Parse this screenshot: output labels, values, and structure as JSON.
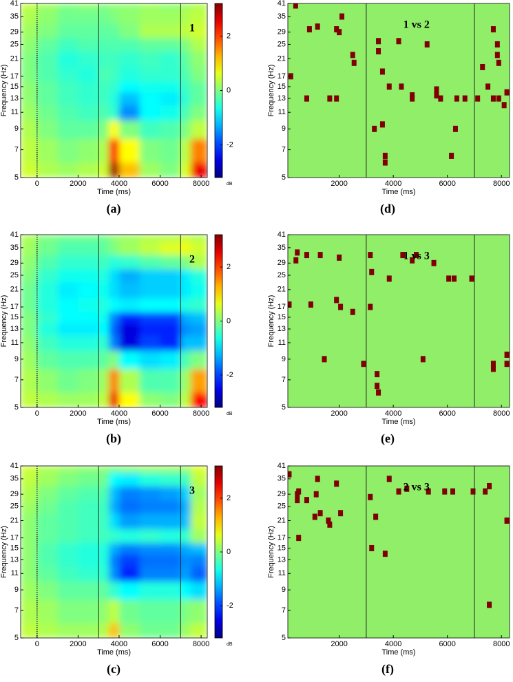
{
  "chart_data": [
    {
      "type": "heatmap",
      "label": "(a)",
      "annotation": "1",
      "xlabel": "Time (ms)",
      "ylabel": "Frequency (Hz)",
      "xlim": [
        -800,
        8300
      ],
      "xticks": [
        0,
        2000,
        4000,
        6000,
        8000
      ],
      "ylim": [
        5,
        41
      ],
      "yticks": [
        5,
        7,
        9,
        11,
        13,
        15,
        17,
        21,
        25,
        29,
        35,
        41
      ],
      "ylog": true,
      "xbins": [
        -800,
        0,
        1000,
        2000,
        3000,
        3500,
        4000,
        5000,
        6000,
        7000,
        7500,
        8300
      ],
      "ybins": [
        5,
        6,
        8,
        10,
        12,
        14,
        16,
        19,
        23,
        27,
        32,
        38,
        41
      ],
      "z": [
        [
          0.5,
          0.3,
          0.2,
          0.3,
          0.5,
          3.0,
          1.2,
          0.2,
          0.0,
          0.6,
          2.5
        ],
        [
          0.4,
          0.2,
          0,
          0.1,
          0.3,
          2.2,
          0.8,
          0.0,
          -0.1,
          0.4,
          1.6
        ],
        [
          0.3,
          0,
          -0.2,
          -0.2,
          0,
          0.8,
          0.0,
          -0.4,
          -0.3,
          0,
          0.4
        ],
        [
          0.2,
          -0.1,
          -0.3,
          -0.4,
          -0.3,
          -0.5,
          -1.5,
          -0.8,
          -0.7,
          -0.3,
          0.0
        ],
        [
          0.1,
          -0.2,
          -0.4,
          -0.5,
          -0.4,
          -0.6,
          -1.2,
          -0.8,
          -0.9,
          -0.5,
          -0.2
        ],
        [
          0.1,
          -0.2,
          -0.4,
          -0.5,
          -0.4,
          -0.5,
          -0.8,
          -0.7,
          -0.7,
          -0.4,
          -0.2
        ],
        [
          0.0,
          -0.3,
          -0.5,
          -0.6,
          -0.3,
          -0.4,
          -0.6,
          -0.5,
          -0.5,
          -0.3,
          0.0
        ],
        [
          0.0,
          -0.3,
          -0.6,
          -0.5,
          -0.4,
          -0.4,
          -0.5,
          -0.4,
          -0.5,
          -0.2,
          0.1
        ],
        [
          0.1,
          -0.2,
          -0.4,
          -0.3,
          -0.3,
          -0.3,
          -0.3,
          -0.2,
          -0.2,
          0.0,
          0.3
        ],
        [
          0.2,
          0,
          -0.2,
          -0.2,
          -0.2,
          -0.2,
          0.0,
          0.3,
          0.3,
          0.4,
          0.5
        ],
        [
          0.3,
          0.1,
          -0.1,
          -0.1,
          -0.1,
          0.0,
          0.1,
          0.2,
          0.2,
          0.3,
          0.4
        ],
        [
          0.4,
          0.2,
          0.0,
          0.1,
          0.0,
          0.1,
          0.1,
          0.2,
          0.1,
          0.2,
          0.3
        ]
      ],
      "colormap": "jet",
      "clim": [
        -3.2,
        3.2
      ],
      "cticks": [
        -2,
        0,
        2
      ],
      "clabel": "dB",
      "vlines": [
        0,
        3000,
        7000
      ],
      "vline_styles": [
        "dotted",
        "solid",
        "solid"
      ]
    },
    {
      "type": "heatmap",
      "label": "(b)",
      "annotation": "2",
      "xlabel": "Time (ms)",
      "ylabel": "Frequency (Hz)",
      "xlim": [
        -800,
        8300
      ],
      "xticks": [
        0,
        2000,
        4000,
        6000,
        8000
      ],
      "ylim": [
        5,
        41
      ],
      "yticks": [
        5,
        7,
        9,
        11,
        13,
        15,
        17,
        21,
        25,
        29,
        35,
        41
      ],
      "ylog": true,
      "xbins": [
        -800,
        0,
        1000,
        2000,
        3000,
        3500,
        4000,
        5000,
        6000,
        7000,
        7500,
        8300
      ],
      "ybins": [
        5,
        6,
        8,
        10,
        12,
        14,
        16,
        19,
        23,
        27,
        32,
        38,
        41
      ],
      "z": [
        [
          0.4,
          0.3,
          0.2,
          0.2,
          0.4,
          2.5,
          0.8,
          0.1,
          0.0,
          0.4,
          2.4
        ],
        [
          0.3,
          0.1,
          -0.1,
          0,
          0.2,
          1.6,
          0.3,
          -0.3,
          -0.3,
          0.2,
          1.4
        ],
        [
          0.2,
          -0.2,
          -0.3,
          -0.3,
          -0.2,
          0.0,
          -0.8,
          -1.0,
          -0.9,
          -0.3,
          0.0
        ],
        [
          0.1,
          -0.4,
          -0.6,
          -0.6,
          -0.5,
          -1.6,
          -2.6,
          -2.0,
          -2.2,
          -1.2,
          -1.2
        ],
        [
          0.0,
          -0.6,
          -0.9,
          -0.9,
          -0.8,
          -1.8,
          -2.6,
          -2.2,
          -2.2,
          -1.5,
          -1.4
        ],
        [
          0.0,
          -0.5,
          -0.8,
          -0.8,
          -0.7,
          -1.6,
          -2.2,
          -2.0,
          -2.0,
          -1.3,
          -1.2
        ],
        [
          -0.1,
          -0.6,
          -0.8,
          -0.7,
          -0.6,
          -0.8,
          -0.9,
          -0.8,
          -0.8,
          -0.6,
          -0.5
        ],
        [
          -0.1,
          -0.6,
          -0.9,
          -0.8,
          -0.7,
          -1.0,
          -1.2,
          -1.1,
          -1.1,
          -0.9,
          -0.7
        ],
        [
          0.0,
          -0.5,
          -0.7,
          -0.7,
          -0.6,
          -1.0,
          -1.3,
          -1.1,
          -1.1,
          -0.9,
          -0.6
        ],
        [
          0.1,
          -0.3,
          -0.5,
          -0.5,
          -0.4,
          -0.6,
          -0.5,
          -0.3,
          -0.2,
          0.0,
          0.3
        ],
        [
          0.2,
          -0.1,
          -0.3,
          -0.3,
          -0.2,
          0.0,
          0.2,
          0.4,
          0.6,
          0.7,
          0.5
        ],
        [
          0.3,
          0.0,
          -0.1,
          -0.1,
          -0.1,
          0.1,
          0.2,
          0.3,
          0.3,
          0.4,
          0.3
        ]
      ],
      "colormap": "jet",
      "clim": [
        -3.2,
        3.2
      ],
      "cticks": [
        -2,
        0,
        2
      ],
      "clabel": "dB",
      "vlines": [
        0,
        3000,
        7000
      ],
      "vline_styles": [
        "dotted",
        "solid",
        "solid"
      ]
    },
    {
      "type": "heatmap",
      "label": "(c)",
      "annotation": "3",
      "xlabel": "Time (ms)",
      "ylabel": "Frequency (Hz)",
      "xlim": [
        -800,
        8300
      ],
      "xticks": [
        0,
        2000,
        4000,
        6000,
        8000
      ],
      "ylim": [
        5,
        41
      ],
      "yticks": [
        5,
        7,
        9,
        11,
        13,
        15,
        17,
        21,
        25,
        29,
        35,
        41
      ],
      "ylog": true,
      "xbins": [
        -800,
        0,
        1000,
        2000,
        3000,
        3500,
        4000,
        5000,
        6000,
        7000,
        7500,
        8300
      ],
      "ybins": [
        5,
        6,
        8,
        10,
        12,
        14,
        16,
        19,
        23,
        27,
        32,
        38,
        41
      ],
      "z": [
        [
          0.4,
          0.3,
          0.2,
          0.2,
          0.3,
          1.2,
          0.1,
          -0.1,
          -0.1,
          0.2,
          0.4
        ],
        [
          0.3,
          0.2,
          0.0,
          0.0,
          0.1,
          0.4,
          -0.1,
          -0.2,
          -0.2,
          0.0,
          0.1
        ],
        [
          0.2,
          0.0,
          -0.2,
          -0.2,
          -0.2,
          -0.5,
          -0.8,
          -0.6,
          -0.6,
          -0.8,
          -1.0
        ],
        [
          0.1,
          -0.2,
          -0.4,
          -0.5,
          -0.5,
          -1.5,
          -2.2,
          -1.6,
          -1.6,
          -1.4,
          -1.8
        ],
        [
          0.1,
          -0.3,
          -0.5,
          -0.6,
          -0.6,
          -1.6,
          -2.0,
          -1.7,
          -1.7,
          -1.5,
          -1.6
        ],
        [
          0.1,
          -0.3,
          -0.5,
          -0.6,
          -0.6,
          -1.3,
          -1.6,
          -1.5,
          -1.5,
          -1.3,
          -1.2
        ],
        [
          0.1,
          -0.2,
          -0.3,
          -0.4,
          -0.4,
          -0.5,
          -0.6,
          -0.5,
          -0.6,
          -0.5,
          0.2
        ],
        [
          0.1,
          -0.2,
          -0.3,
          -0.4,
          -0.4,
          -1.0,
          -1.4,
          -1.3,
          -1.3,
          -1.2,
          0.4
        ],
        [
          0.2,
          -0.1,
          -0.3,
          -0.4,
          -0.4,
          -1.3,
          -1.7,
          -1.6,
          -1.6,
          -1.3,
          0.3
        ],
        [
          0.3,
          0.0,
          -0.2,
          -0.3,
          -0.3,
          -1.2,
          -1.6,
          -1.5,
          -1.4,
          -1.1,
          0.2
        ],
        [
          0.4,
          0.2,
          0.0,
          -0.1,
          -0.1,
          -0.8,
          -0.9,
          -0.6,
          -0.5,
          -0.4,
          0.4
        ],
        [
          0.5,
          0.3,
          0.2,
          0.1,
          0.1,
          0.0,
          0.1,
          0.2,
          0.2,
          0.2,
          0.6
        ]
      ],
      "colormap": "jet",
      "clim": [
        -3.2,
        3.2
      ],
      "cticks": [
        -2,
        0,
        2
      ],
      "clabel": "dB",
      "vlines": [
        0,
        3000,
        7000
      ],
      "vline_styles": [
        "dotted",
        "solid",
        "solid"
      ]
    },
    {
      "type": "scatter",
      "label": "(d)",
      "annotation": "1 vs 2",
      "xlabel": "Time (ms)",
      "ylabel": "Frequency (Hz)",
      "xlim": [
        100,
        8300
      ],
      "xticks": [
        2000,
        4000,
        6000,
        8000
      ],
      "ylim": [
        5,
        41
      ],
      "yticks": [
        5,
        7,
        9,
        11,
        13,
        15,
        17,
        21,
        25,
        29,
        35,
        41
      ],
      "ylog": true,
      "x": [
        390,
        900,
        1200,
        1900,
        2000,
        2100,
        2500,
        2550,
        210,
        800,
        1650,
        1900,
        3450,
        3450,
        3600,
        3600,
        3300,
        3700,
        3700,
        3850,
        4200,
        4300,
        4700,
        4700,
        5250,
        5600,
        5600,
        5750,
        6300,
        6350,
        6650,
        7120,
        7300,
        7850,
        7850,
        7900,
        7700,
        7900,
        8100,
        8200,
        7700,
        7500,
        6150
      ],
      "y": [
        40,
        30,
        31,
        30,
        29,
        35,
        22,
        20,
        17,
        13,
        13,
        13,
        23,
        26,
        18,
        9.5,
        9,
        6,
        6.5,
        15,
        26,
        15,
        13,
        13.5,
        25,
        13.5,
        14.5,
        13,
        9,
        13,
        13,
        13,
        19,
        22,
        25,
        20,
        13,
        13,
        12,
        14,
        30,
        15,
        6.5
      ],
      "color": "#800000",
      "background": "#90ee68",
      "vlines": [
        3000,
        7000
      ],
      "vline_styles": [
        "solid",
        "solid"
      ]
    },
    {
      "type": "scatter",
      "label": "(e)",
      "annotation": "1 vs 3",
      "xlabel": "Time (ms)",
      "ylabel": "Frequency (Hz)",
      "xlim": [
        100,
        8300
      ],
      "xticks": [
        2000,
        4000,
        6000,
        8000
      ],
      "ylim": [
        5,
        41
      ],
      "yticks": [
        5,
        7,
        9,
        11,
        13,
        15,
        17,
        21,
        25,
        29,
        35,
        41
      ],
      "ylog": true,
      "x": [
        400,
        450,
        800,
        1300,
        2000,
        150,
        950,
        1900,
        2050,
        2500,
        1450,
        2900,
        3150,
        3200,
        3150,
        3400,
        3400,
        3450,
        3850,
        4350,
        4850,
        4700,
        5100,
        5500,
        6050,
        6250,
        6900,
        7700,
        7700,
        8200,
        8200
      ],
      "y": [
        30,
        33,
        32,
        32,
        31,
        17.5,
        17.5,
        18.5,
        17,
        16,
        9,
        8.5,
        32,
        26,
        17,
        7.5,
        6.5,
        6,
        24,
        32,
        32,
        30,
        9,
        29,
        24,
        24,
        24,
        8.5,
        8,
        8.5,
        9.5
      ],
      "color": "#800000",
      "background": "#90ee68",
      "vlines": [
        3000,
        7000
      ],
      "vline_styles": [
        "solid",
        "solid"
      ]
    },
    {
      "type": "scatter",
      "label": "(f)",
      "annotation": "2 vs 3",
      "xlabel": "Time (ms)",
      "ylabel": "Frequency (Hz)",
      "xlim": [
        100,
        8300
      ],
      "xticks": [
        2000,
        4000,
        6000,
        8000
      ],
      "ylim": [
        5,
        41
      ],
      "yticks": [
        5,
        7,
        9,
        11,
        13,
        15,
        17,
        21,
        25,
        29,
        35,
        41
      ],
      "ylog": true,
      "x": [
        150,
        450,
        450,
        500,
        800,
        1150,
        1200,
        1300,
        1600,
        1650,
        1900,
        2050,
        500,
        1100,
        3150,
        3350,
        3200,
        3700,
        3850,
        4200,
        4500,
        5300,
        5900,
        6200,
        6950,
        7550,
        7400,
        8200,
        7550
      ],
      "y": [
        37,
        29,
        27,
        30,
        27,
        29,
        35,
        23,
        21,
        20,
        33,
        23,
        17,
        22,
        28,
        22,
        15,
        14,
        35,
        30,
        31,
        30,
        30,
        30,
        30,
        32,
        30,
        21,
        7.5
      ],
      "color": "#800000",
      "background": "#90ee68",
      "vlines": [
        3000,
        7000
      ],
      "vline_styles": [
        "solid",
        "solid"
      ]
    }
  ]
}
